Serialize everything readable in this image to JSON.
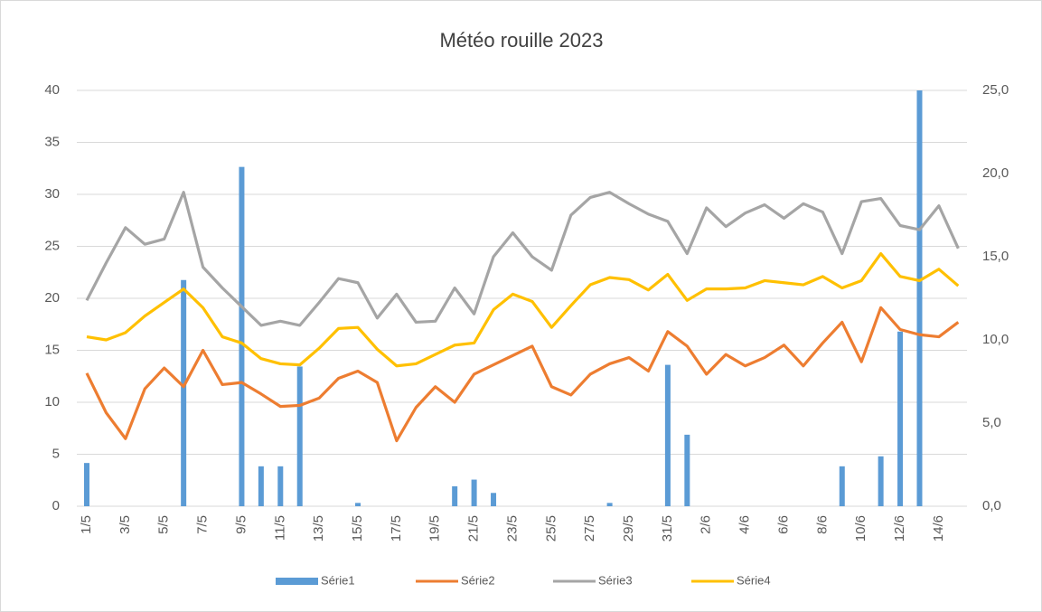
{
  "chart_data": {
    "type": "bar_line",
    "title": "Météo rouille 2023",
    "categories": [
      "1/5",
      null,
      "3/5",
      null,
      "5/5",
      null,
      "7/5",
      null,
      "9/5",
      null,
      "11/5",
      null,
      "13/5",
      null,
      "15/5",
      null,
      "17/5",
      null,
      "19/5",
      null,
      "21/5",
      null,
      "23/5",
      null,
      "25/5",
      null,
      "27/5",
      null,
      "29/5",
      null,
      "31/5",
      null,
      "2/6",
      null,
      "4/6",
      null,
      "6/6",
      null,
      "8/6",
      null,
      "10/6",
      null,
      "12/6",
      null,
      "14/6",
      null
    ],
    "ylim": [
      0,
      40
    ],
    "yticks": [
      0,
      5,
      10,
      15,
      20,
      25,
      30,
      35,
      40
    ],
    "y2lim": [
      0,
      25
    ],
    "y2ticks": [
      {
        "value": 0,
        "label": "0,0"
      },
      {
        "value": 5,
        "label": "5,0"
      },
      {
        "value": 10,
        "label": "10,0"
      },
      {
        "value": 15,
        "label": "15,0"
      },
      {
        "value": 20,
        "label": "20,0"
      },
      {
        "value": 25,
        "label": "25,0"
      }
    ],
    "grid": true,
    "legend": "bottom",
    "series": [
      {
        "name": "Série1",
        "type": "bar",
        "axis": "y2",
        "color": "#5b9bd5",
        "values": [
          2.6,
          0,
          0,
          0,
          0,
          13.6,
          0,
          0,
          20.4,
          2.4,
          2.4,
          8.4,
          0,
          0,
          0.2,
          0,
          0,
          0,
          0,
          1.2,
          1.6,
          0.8,
          0,
          0,
          0,
          0,
          0,
          0.2,
          0,
          0,
          8.5,
          4.3,
          0,
          0,
          0,
          0,
          0,
          0,
          0,
          2.4,
          0,
          3.0,
          10.5,
          25.0,
          0,
          0
        ]
      },
      {
        "name": "Série2",
        "type": "line",
        "color": "#ed7d31",
        "values": [
          12.8,
          9.0,
          6.5,
          11.3,
          13.3,
          11.5,
          15.0,
          11.7,
          11.9,
          10.8,
          9.6,
          9.7,
          10.4,
          12.3,
          13.0,
          11.9,
          6.3,
          9.5,
          11.5,
          10.0,
          12.7,
          13.6,
          14.5,
          15.4,
          11.5,
          10.7,
          12.7,
          13.7,
          14.3,
          13.0,
          16.8,
          15.4,
          12.7,
          14.6,
          13.5,
          14.3,
          15.5,
          13.5,
          15.7,
          17.7,
          13.9,
          19.1,
          17.0,
          16.5,
          16.3,
          17.7
        ]
      },
      {
        "name": "Série3",
        "type": "line",
        "color": "#a5a5a5",
        "values": [
          19.8,
          23.4,
          26.8,
          25.2,
          25.7,
          30.2,
          23.0,
          21.0,
          19.2,
          17.4,
          17.8,
          17.4,
          19.6,
          21.9,
          21.5,
          18.1,
          20.4,
          17.7,
          17.8,
          21.0,
          18.5,
          24.0,
          26.3,
          24.0,
          22.7,
          28.0,
          29.7,
          30.2,
          29.1,
          28.1,
          27.4,
          24.3,
          28.7,
          26.9,
          28.2,
          29.0,
          27.7,
          29.1,
          28.3,
          24.3,
          29.3,
          29.6,
          27.0,
          26.6,
          28.9,
          24.8
        ]
      },
      {
        "name": "Série4",
        "type": "line",
        "color": "#ffc000",
        "values": [
          16.3,
          16.0,
          16.7,
          18.3,
          19.6,
          20.9,
          19.1,
          16.3,
          15.7,
          14.2,
          13.7,
          13.6,
          15.2,
          17.1,
          17.2,
          15.1,
          13.5,
          13.7,
          14.6,
          15.5,
          15.7,
          18.9,
          20.4,
          19.7,
          17.2,
          19.3,
          21.3,
          22.0,
          21.8,
          20.8,
          22.3,
          19.8,
          20.9,
          20.9,
          21.0,
          21.7,
          21.5,
          21.3,
          22.1,
          21.0,
          21.7,
          24.3,
          22.1,
          21.7,
          22.8,
          21.2
        ]
      }
    ]
  }
}
